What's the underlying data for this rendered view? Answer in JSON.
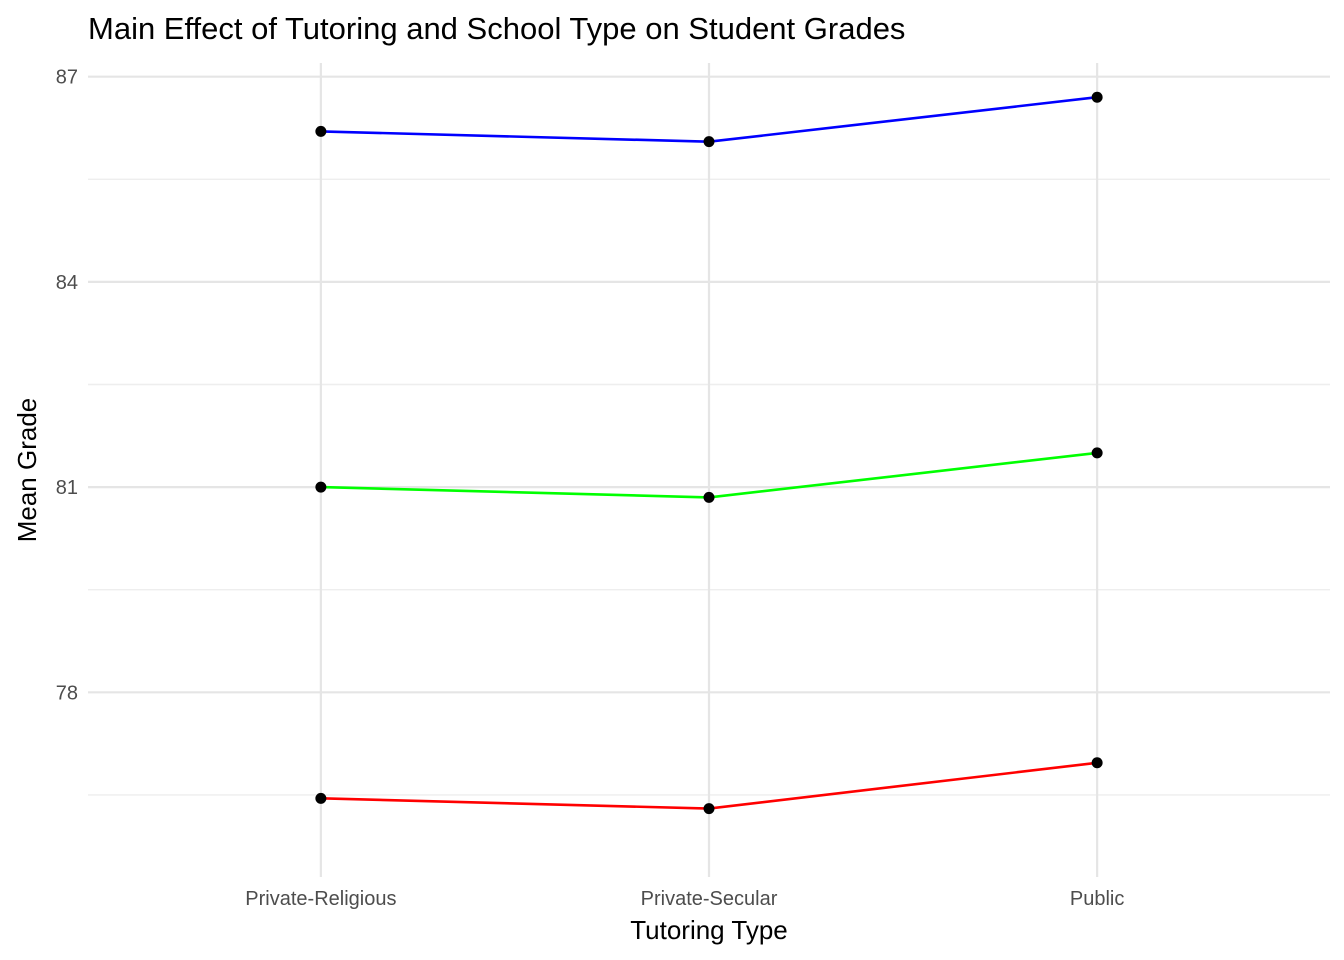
{
  "chart_data": {
    "type": "line",
    "title": "Main Effect of Tutoring and School Type on Student Grades",
    "xlabel": "Tutoring Type",
    "ylabel": "Mean Grade",
    "categories": [
      "Private-Religious",
      "Private-Secular",
      "Public"
    ],
    "ylim": [
      75.3,
      87.2
    ],
    "yticks": [
      78,
      81,
      84,
      87
    ],
    "yticks_minor": [
      76.5,
      79.5,
      82.5,
      85.5
    ],
    "grid": true,
    "legend": "none",
    "point_color": "#000000",
    "series": [
      {
        "color": "#0000ff",
        "values": [
          86.2,
          86.05,
          86.7
        ]
      },
      {
        "color": "#00ff00",
        "values": [
          81.0,
          80.85,
          81.5
        ]
      },
      {
        "color": "#ff0000",
        "values": [
          76.45,
          76.3,
          76.97
        ]
      }
    ]
  }
}
